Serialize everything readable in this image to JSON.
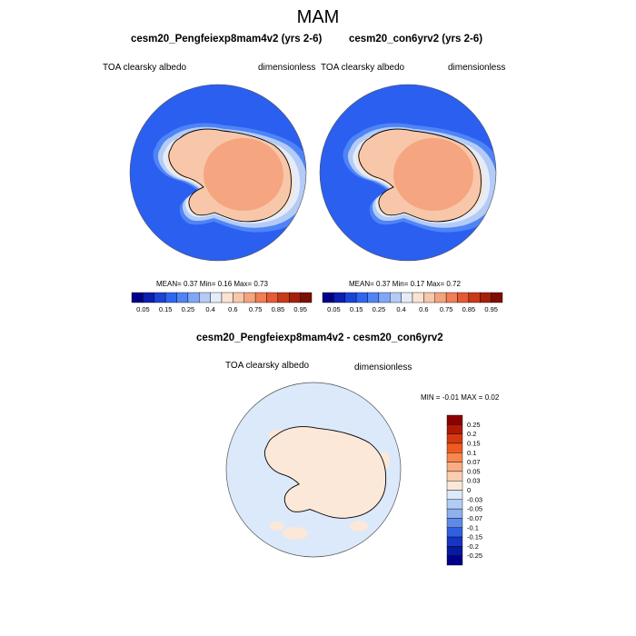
{
  "title": "MAM",
  "panels": [
    {
      "name": "cesm20_Pengfeiexp8mam4v2 (yrs 2-6)",
      "variable": "TOA clearsky albedo",
      "units": "dimensionless",
      "stats_text": "MEAN=   0.37  Min=   0.16  Max=   0.73"
    },
    {
      "name": "cesm20_con6yrv2 (yrs 2-6)",
      "variable": "TOA clearsky albedo",
      "units": "dimensionless",
      "stats_text": "MEAN=   0.37  Min=   0.17  Max=   0.72"
    }
  ],
  "diff_panel": {
    "name": "cesm20_Pengfeiexp8mam4v2 - cesm20_con6yrv2",
    "variable": "TOA clearsky albedo",
    "units": "dimensionless",
    "stats_text": "MIN =  -0.01 MAX =   0.02"
  },
  "chart_data": [
    {
      "type": "heatmap",
      "projection": "south polar stereographic",
      "title": "cesm20_Pengfeiexp8mam4v2 (yrs 2-6)",
      "stats": {
        "mean": 0.37,
        "min": 0.16,
        "max": 0.73
      },
      "colorbar": {
        "orientation": "horizontal",
        "tick_labels": [
          "0.05",
          "0.15",
          "0.25",
          "0.4",
          "0.6",
          "0.75",
          "0.85",
          "0.95"
        ]
      }
    },
    {
      "type": "heatmap",
      "projection": "south polar stereographic",
      "title": "cesm20_con6yrv2 (yrs 2-6)",
      "stats": {
        "mean": 0.37,
        "min": 0.17,
        "max": 0.72
      },
      "colorbar": {
        "orientation": "horizontal",
        "tick_labels": [
          "0.05",
          "0.15",
          "0.25",
          "0.4",
          "0.6",
          "0.75",
          "0.85",
          "0.95"
        ]
      }
    },
    {
      "type": "heatmap",
      "projection": "south polar stereographic",
      "title": "cesm20_Pengfeiexp8mam4v2 - cesm20_con6yrv2",
      "stats": {
        "min": -0.01,
        "max": 0.02
      },
      "colorbar": {
        "orientation": "vertical",
        "tick_labels": [
          "0.25",
          "0.2",
          "0.15",
          "0.1",
          "0.07",
          "0.05",
          "0.03",
          "0",
          "-0.03",
          "-0.05",
          "-0.07",
          "-0.1",
          "-0.15",
          "-0.2",
          "-0.25"
        ]
      }
    }
  ],
  "colors": {
    "field_scale": [
      "#00008b",
      "#0a1fb0",
      "#1a44d6",
      "#2e66f0",
      "#4f84f7",
      "#7fa6f8",
      "#b4cbf6",
      "#e3ecf8",
      "#fbe3d2",
      "#f8c7aa",
      "#f3a47d",
      "#f17e55",
      "#e55a32",
      "#c83a1a",
      "#a5200b",
      "#7d0e04"
    ],
    "diff_scale": [
      "#8b0000",
      "#b01a05",
      "#d43a10",
      "#f05a1e",
      "#f7874c",
      "#f9ad82",
      "#fbcdb0",
      "#fce8d8",
      "#dbe9fa",
      "#b2ccf4",
      "#8eb0ee",
      "#5d8aea",
      "#2f60e0",
      "#1635c2",
      "#051a9e",
      "#00008b"
    ],
    "ocean_blue": "#2a5ff0",
    "antarctica_fill": "#f5a57f",
    "diff_ocean": "#dbe9fa",
    "diff_land": "#fce8d8"
  }
}
